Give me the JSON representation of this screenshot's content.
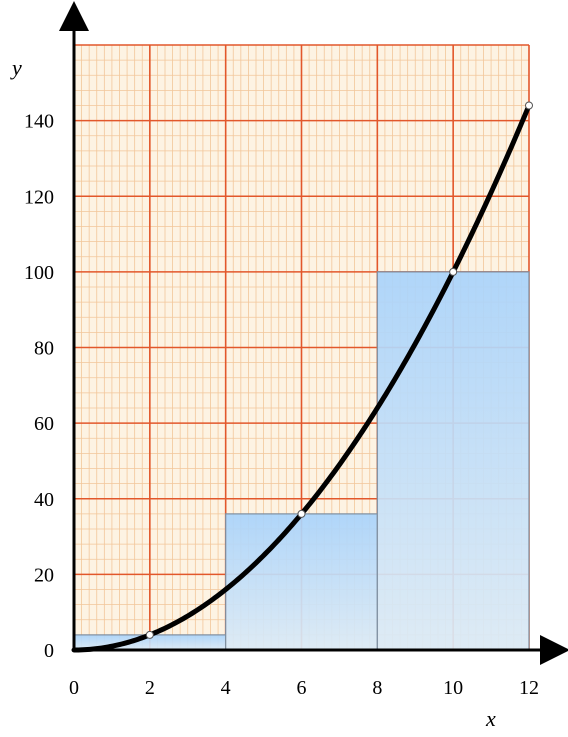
{
  "chart_data": {
    "type": "line",
    "xlabel": "x",
    "ylabel": "y",
    "xlim": [
      0,
      12
    ],
    "ylim": [
      0,
      160
    ],
    "x_ticks": [
      0,
      2,
      4,
      6,
      8,
      10,
      12
    ],
    "y_ticks": [
      0,
      20,
      40,
      60,
      80,
      100,
      120,
      140
    ],
    "x_tick_labels": [
      "0",
      "2",
      "4",
      "6",
      "8",
      "10",
      "12"
    ],
    "y_tick_labels": [
      "0",
      "20",
      "40",
      "60",
      "80",
      "100",
      "120",
      "140"
    ],
    "grid": true,
    "curve": {
      "function": "y = x^2",
      "x_range": [
        0,
        12
      ],
      "points": [
        {
          "x": 0,
          "y": 0
        },
        {
          "x": 2,
          "y": 4
        },
        {
          "x": 6,
          "y": 36
        },
        {
          "x": 10,
          "y": 100
        },
        {
          "x": 12,
          "y": 144
        }
      ]
    },
    "rectangles": [
      {
        "x0": 0,
        "x1": 4,
        "height": 4
      },
      {
        "x0": 4,
        "x1": 8,
        "height": 36
      },
      {
        "x0": 8,
        "x1": 12,
        "height": 100
      }
    ],
    "colors": {
      "major_grid": "#e2572b",
      "minor_grid": "#f2c69a",
      "paper": "#fdf3e3",
      "rect_fill_top": "#a9d3fb",
      "rect_fill_bottom": "#dbeaf6",
      "rect_stroke": "#7f8fa0",
      "curve": "#000000",
      "marker_fill": "#ffffff"
    }
  }
}
